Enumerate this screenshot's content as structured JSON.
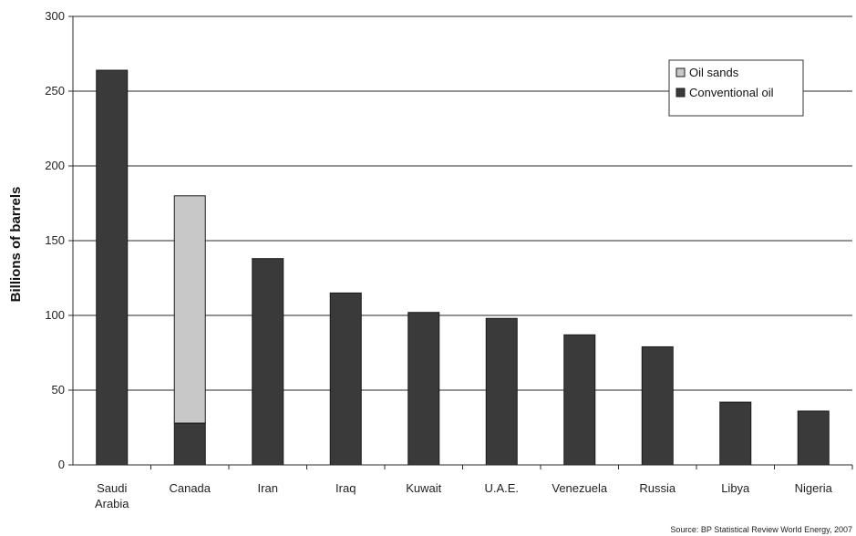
{
  "chart_data": {
    "type": "bar",
    "stacked": true,
    "title": "",
    "xlabel": "",
    "ylabel": "Billions of barrels",
    "ylim": [
      0,
      300
    ],
    "yticks": [
      0,
      50,
      100,
      150,
      200,
      250,
      300
    ],
    "grid": "horizontal",
    "legend_position": "top-right",
    "categories": [
      [
        "Saudi",
        "Arabia"
      ],
      [
        "Canada"
      ],
      [
        "Iran"
      ],
      [
        "Iraq"
      ],
      [
        "Kuwait"
      ],
      [
        "U.A.E."
      ],
      [
        "Venezuela"
      ],
      [
        "Russia"
      ],
      [
        "Libya"
      ],
      [
        "Nigeria"
      ]
    ],
    "series": [
      {
        "name": "Conventional oil",
        "color": "#3a3a3a",
        "values": [
          264,
          28,
          138,
          115,
          102,
          98,
          87,
          79,
          42,
          36
        ]
      },
      {
        "name": "Oil sands",
        "color": "#c8c8c8",
        "values": [
          0,
          152,
          0,
          0,
          0,
          0,
          0,
          0,
          0,
          0
        ]
      }
    ],
    "legend_order": [
      "Oil sands",
      "Conventional oil"
    ],
    "source": "Source: BP Statistical Review World Energy, 2007"
  }
}
